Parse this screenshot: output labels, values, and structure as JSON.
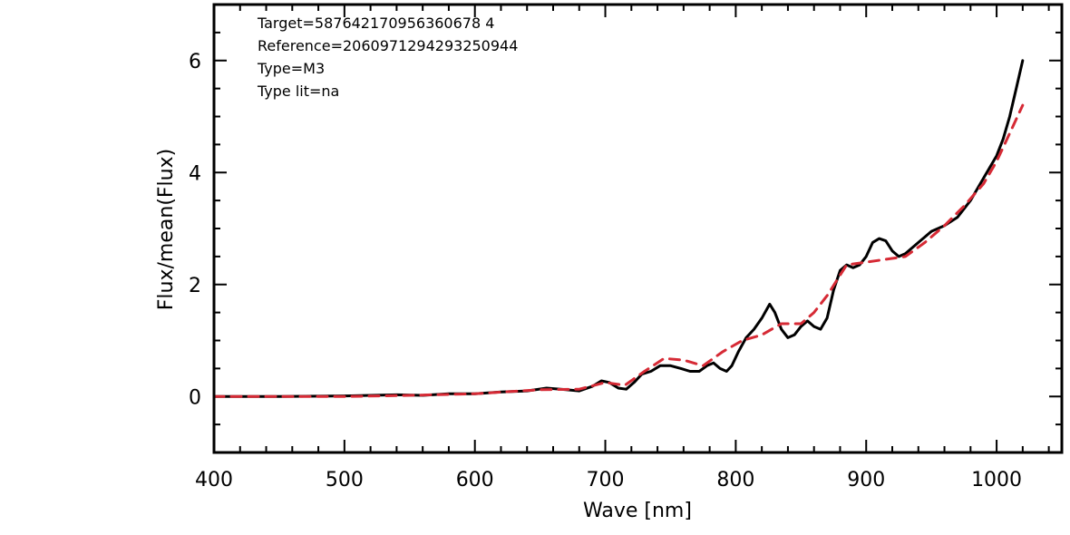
{
  "chart_data": {
    "type": "line",
    "xlabel": "Wave [nm]",
    "ylabel": "Flux/mean(Flux)",
    "xlim": [
      400,
      1050
    ],
    "ylim": [
      -1,
      7
    ],
    "x_ticks": [
      400,
      500,
      600,
      700,
      800,
      900,
      1000
    ],
    "y_ticks": [
      0,
      2,
      4,
      6
    ],
    "annotations": [
      "Target=587642170956360678 4",
      "Reference=2060971294293250944",
      "Type=M3",
      "Type lit=na"
    ],
    "series": [
      {
        "style": "solid",
        "color": "#000000",
        "x": [
          400,
          450,
          500,
          540,
          560,
          580,
          600,
          620,
          640,
          655,
          670,
          680,
          690,
          697,
          703,
          710,
          716,
          722,
          728,
          735,
          742,
          750,
          758,
          765,
          772,
          778,
          783,
          788,
          793,
          797,
          802,
          808,
          814,
          820,
          826,
          830,
          835,
          840,
          845,
          850,
          855,
          860,
          865,
          870,
          875,
          880,
          885,
          890,
          895,
          900,
          905,
          910,
          915,
          920,
          925,
          930,
          940,
          950,
          960,
          970,
          980,
          990,
          1000,
          1005,
          1010,
          1015,
          1020
        ],
        "y": [
          0,
          0,
          0.01,
          0.03,
          0.02,
          0.05,
          0.05,
          0.08,
          0.1,
          0.15,
          0.12,
          0.1,
          0.18,
          0.28,
          0.25,
          0.15,
          0.13,
          0.25,
          0.4,
          0.45,
          0.55,
          0.55,
          0.5,
          0.45,
          0.45,
          0.55,
          0.6,
          0.5,
          0.45,
          0.55,
          0.8,
          1.05,
          1.2,
          1.4,
          1.65,
          1.5,
          1.2,
          1.05,
          1.1,
          1.25,
          1.35,
          1.25,
          1.2,
          1.4,
          1.9,
          2.25,
          2.35,
          2.3,
          2.35,
          2.5,
          2.75,
          2.82,
          2.78,
          2.6,
          2.5,
          2.55,
          2.75,
          2.95,
          3.05,
          3.2,
          3.5,
          3.9,
          4.3,
          4.6,
          5.0,
          5.5,
          6.0
        ]
      },
      {
        "style": "dashed",
        "color": "#d62a35",
        "x": [
          400,
          450,
          500,
          550,
          600,
          650,
          680,
          700,
          715,
          730,
          745,
          760,
          775,
          790,
          805,
          820,
          835,
          850,
          860,
          870,
          885,
          900,
          915,
          930,
          945,
          960,
          975,
          990,
          1000,
          1010,
          1020
        ],
        "y": [
          0,
          0,
          0,
          0.02,
          0.05,
          0.12,
          0.13,
          0.25,
          0.2,
          0.45,
          0.68,
          0.65,
          0.55,
          0.8,
          1.0,
          1.1,
          1.3,
          1.3,
          1.5,
          1.8,
          2.35,
          2.4,
          2.45,
          2.5,
          2.75,
          3.05,
          3.4,
          3.8,
          4.2,
          4.7,
          5.2
        ]
      }
    ]
  }
}
